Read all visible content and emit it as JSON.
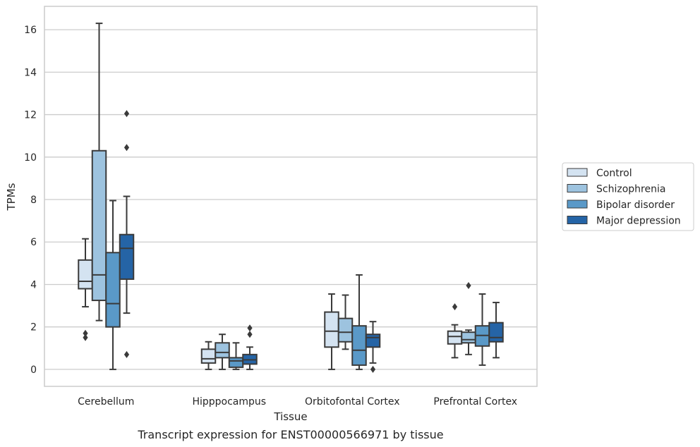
{
  "caption": "Transcript expression for ENST00000566971 by tissue",
  "colors": {
    "Control": "#d4e3f1",
    "Schizophrenia": "#9dc3df",
    "Bipolar disorder": "#5a99c8",
    "Major depression": "#2564a6",
    "grid": "#cccccc",
    "line": "#3a3a3a"
  },
  "chart_data": {
    "type": "box",
    "xlabel": "Tissue",
    "ylabel": "TPMs",
    "ylim": [
      -0.8,
      17.1
    ],
    "yticks": [
      0,
      2,
      4,
      6,
      8,
      10,
      12,
      14,
      16
    ],
    "grid": true,
    "legend": "right",
    "categories": [
      "Cerebellum",
      "Hipppocampus",
      "Orbitofontal Cortex",
      "Prefrontal Cortex"
    ],
    "series": [
      {
        "name": "Control",
        "boxes": [
          {
            "whisker_low": 2.95,
            "q1": 3.8,
            "median": 4.15,
            "q3": 5.15,
            "whisker_high": 6.15,
            "outliers": [
              1.7,
              1.5
            ]
          },
          {
            "whisker_low": 0.0,
            "q1": 0.3,
            "median": 0.5,
            "q3": 0.95,
            "whisker_high": 1.3,
            "outliers": []
          },
          {
            "whisker_low": 0.0,
            "q1": 1.05,
            "median": 1.8,
            "q3": 2.7,
            "whisker_high": 3.55,
            "outliers": []
          },
          {
            "whisker_low": 0.55,
            "q1": 1.2,
            "median": 1.55,
            "q3": 1.8,
            "whisker_high": 2.1,
            "outliers": [
              2.95
            ]
          }
        ]
      },
      {
        "name": "Schizophrenia",
        "boxes": [
          {
            "whisker_low": 2.3,
            "q1": 3.25,
            "median": 4.45,
            "q3": 10.3,
            "whisker_high": 16.3,
            "outliers": []
          },
          {
            "whisker_low": 0.0,
            "q1": 0.55,
            "median": 0.8,
            "q3": 1.25,
            "whisker_high": 1.65,
            "outliers": []
          },
          {
            "whisker_low": 0.95,
            "q1": 1.3,
            "median": 1.75,
            "q3": 2.4,
            "whisker_high": 3.5,
            "outliers": []
          },
          {
            "whisker_low": 0.7,
            "q1": 1.25,
            "median": 1.4,
            "q3": 1.75,
            "whisker_high": 1.85,
            "outliers": [
              3.95
            ]
          }
        ]
      },
      {
        "name": "Bipolar disorder",
        "boxes": [
          {
            "whisker_low": 0.0,
            "q1": 2.0,
            "median": 3.1,
            "q3": 5.5,
            "whisker_high": 7.95,
            "outliers": []
          },
          {
            "whisker_low": 0.0,
            "q1": 0.1,
            "median": 0.4,
            "q3": 0.55,
            "whisker_high": 1.25,
            "outliers": []
          },
          {
            "whisker_low": 0.0,
            "q1": 0.2,
            "median": 0.9,
            "q3": 2.05,
            "whisker_high": 4.45,
            "outliers": []
          },
          {
            "whisker_low": 0.2,
            "q1": 1.1,
            "median": 1.6,
            "q3": 2.05,
            "whisker_high": 3.55,
            "outliers": []
          }
        ]
      },
      {
        "name": "Major depression",
        "boxes": [
          {
            "whisker_low": 2.65,
            "q1": 4.25,
            "median": 5.7,
            "q3": 6.35,
            "whisker_high": 8.15,
            "outliers": [
              12.05,
              10.45,
              0.7
            ]
          },
          {
            "whisker_low": 0.0,
            "q1": 0.25,
            "median": 0.45,
            "q3": 0.7,
            "whisker_high": 1.05,
            "outliers": [
              1.95,
              1.65
            ]
          },
          {
            "whisker_low": 0.3,
            "q1": 1.05,
            "median": 1.5,
            "q3": 1.65,
            "whisker_high": 2.25,
            "outliers": [
              0.0
            ]
          },
          {
            "whisker_low": 0.55,
            "q1": 1.3,
            "median": 1.5,
            "q3": 2.2,
            "whisker_high": 3.15,
            "outliers": []
          }
        ]
      }
    ]
  }
}
